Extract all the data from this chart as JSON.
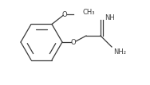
{
  "bg_color": "#ffffff",
  "line_color": "#3a3a3a",
  "text_color": "#3a3a3a",
  "figsize": [
    1.88,
    1.07
  ],
  "dpi": 100,
  "methoxy_o_label": "O",
  "methoxy_ch3_label": "CH₃",
  "ether_o_label": "O",
  "imine_label": "NH",
  "amine_label": "NH₂",
  "font_size": 6.0
}
